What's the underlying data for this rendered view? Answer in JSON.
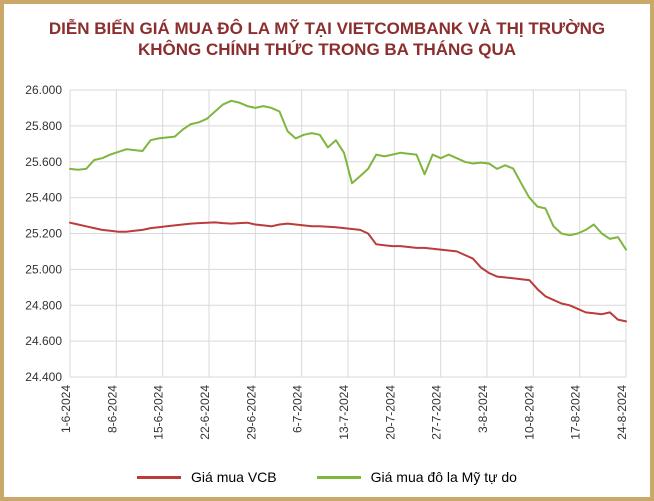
{
  "title": {
    "line1": "DIỄN BIẾN GIÁ MUA ĐÔ LA MỸ TẠI VIETCOMBANK VÀ THỊ TRƯỜNG",
    "line2": "KHÔNG CHÍNH THỨC TRONG BA THÁNG QUA",
    "color": "#8b2e2e",
    "fontsize": 17,
    "weight": 800
  },
  "card": {
    "border_color": "#c9a86a",
    "background_color": "#ffffff"
  },
  "chart": {
    "type": "line",
    "background_color": "#ffffff",
    "grid_color": "#d9d9d9",
    "axis_color": "#d9d9d9",
    "tick_font_size": 12,
    "ylim": [
      24400,
      26000
    ],
    "ytick_step": 200,
    "yticks": [
      24400,
      24600,
      24800,
      25000,
      25200,
      25400,
      25600,
      25800,
      26000
    ],
    "x_labels": [
      "1-6-2024",
      "8-6-2024",
      "15-6-2024",
      "22-6-2024",
      "29-6-2024",
      "6-7-2024",
      "13-7-2024",
      "20-7-2024",
      "27-7-2024",
      "3-8-2024",
      "10-8-2024",
      "17-8-2024",
      "24-8-2024"
    ],
    "x_label_rotation": -90,
    "line_width": 2,
    "series": [
      {
        "key": "vcb",
        "label": "Giá mua VCB",
        "color": "#bc3b3b",
        "values": [
          25260,
          25250,
          25240,
          25230,
          25220,
          25215,
          25210,
          25210,
          25215,
          25220,
          25230,
          25235,
          25240,
          25245,
          25250,
          25255,
          25258,
          25260,
          25262,
          25258,
          25255,
          25258,
          25260,
          25250,
          25245,
          25240,
          25250,
          25255,
          25250,
          25245,
          25240,
          25240,
          25238,
          25235,
          25230,
          25225,
          25220,
          25200,
          25140,
          25135,
          25130,
          25130,
          25125,
          25120,
          25120,
          25115,
          25110,
          25105,
          25100,
          25080,
          25060,
          25010,
          24980,
          24960,
          24955,
          24950,
          24945,
          24940,
          24890,
          24850,
          24830,
          24810,
          24800,
          24780,
          24760,
          24755,
          24750,
          24760,
          24720,
          24710
        ],
        "dash": "none"
      },
      {
        "key": "free",
        "label": "Giá mua đô la Mỹ tự do",
        "color": "#7eb63e",
        "values": [
          25560,
          25555,
          25560,
          25610,
          25620,
          25640,
          25655,
          25670,
          25665,
          25660,
          25720,
          25730,
          25735,
          25740,
          25780,
          25810,
          25820,
          25840,
          25880,
          25920,
          25940,
          25930,
          25910,
          25900,
          25910,
          25900,
          25880,
          25770,
          25730,
          25750,
          25760,
          25750,
          25680,
          25720,
          25650,
          25480,
          25520,
          25560,
          25640,
          25630,
          25640,
          25650,
          25645,
          25640,
          25530,
          25640,
          25620,
          25640,
          25620,
          25600,
          25590,
          25595,
          25590,
          25560,
          25580,
          25562,
          25480,
          25400,
          25350,
          25340,
          25240,
          25200,
          25190,
          25200,
          25220,
          25250,
          25200,
          25170,
          25180,
          25110
        ],
        "dash": "none"
      }
    ],
    "legend": {
      "position": "bottom",
      "font_size": 14,
      "swatch_length": 44
    }
  }
}
